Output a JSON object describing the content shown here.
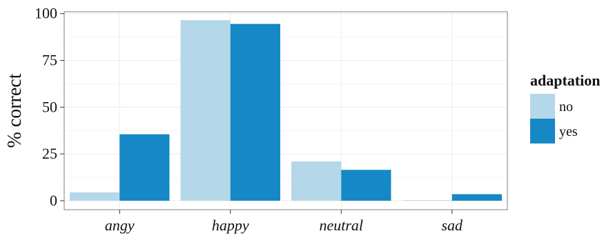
{
  "chart_data": {
    "type": "bar",
    "categories": [
      "angy",
      "happy",
      "neutral",
      "sad"
    ],
    "series": [
      {
        "name": "no",
        "values": [
          4.5,
          96.5,
          21,
          0.3
        ]
      },
      {
        "name": "yes",
        "values": [
          35.5,
          94.5,
          16.5,
          3.5
        ]
      }
    ],
    "ylabel": "% correct",
    "xlabel": "",
    "ylim": [
      -4.8,
      101
    ],
    "yticks": [
      0,
      25,
      50,
      75,
      100
    ],
    "grid": true,
    "legend": {
      "title": "adaptation",
      "position": "right"
    }
  },
  "colors": {
    "no": "#b4d8ea",
    "yes": "#1688c6",
    "panel_border": "#7f7f7f",
    "grid_major": "#ebebeb",
    "grid_minor": "#f5f5f5",
    "axis_text": "#111111"
  }
}
